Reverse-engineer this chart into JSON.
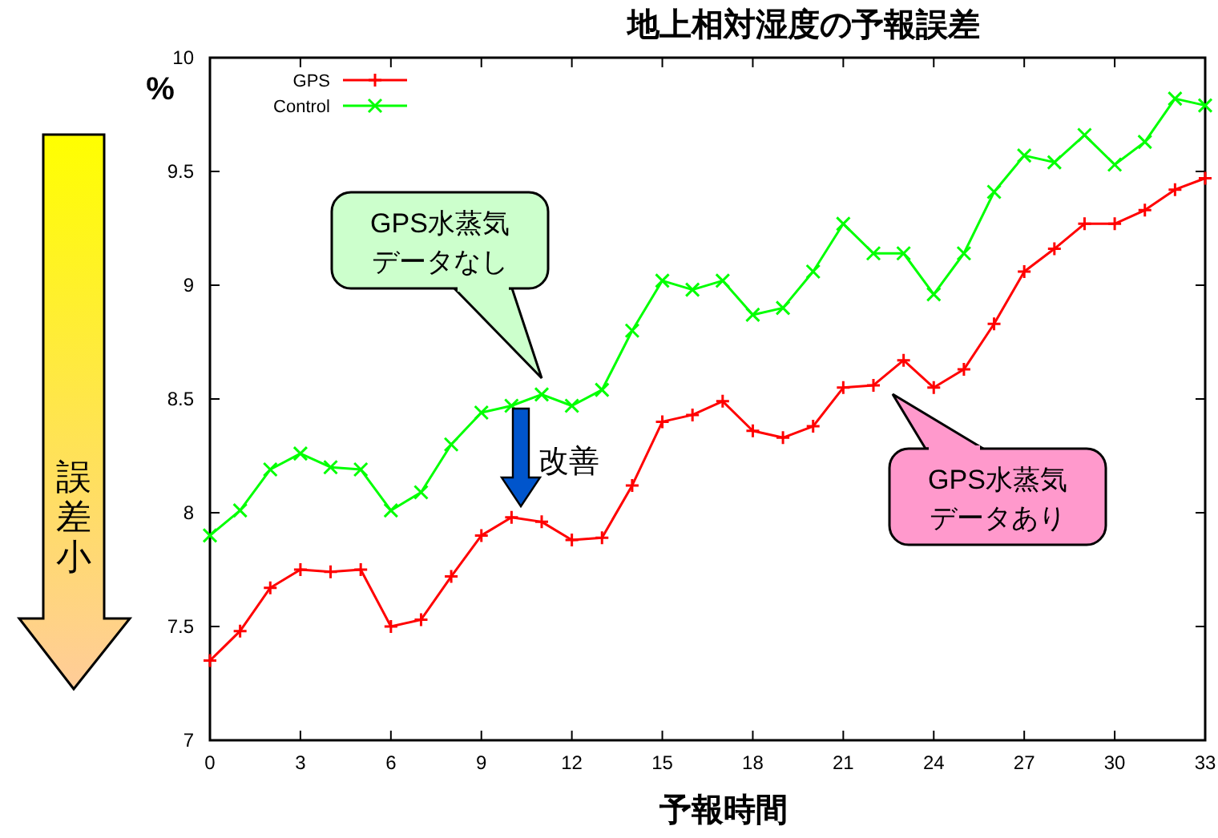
{
  "chart_data": {
    "type": "line",
    "title": "地上相対湿度の予報誤差",
    "xlabel": "予報時間",
    "ylabel": "%",
    "x": [
      0,
      1,
      2,
      3,
      4,
      5,
      6,
      7,
      8,
      9,
      10,
      11,
      12,
      13,
      14,
      15,
      16,
      17,
      18,
      19,
      20,
      21,
      22,
      23,
      24,
      25,
      26,
      27,
      28,
      29,
      30,
      31,
      32,
      33
    ],
    "series": [
      {
        "name": "GPS",
        "color": "#ff0000",
        "marker": "cross",
        "values": [
          7.35,
          7.48,
          7.67,
          7.75,
          7.74,
          7.75,
          7.5,
          7.53,
          7.72,
          7.9,
          7.98,
          7.96,
          7.88,
          7.89,
          8.12,
          8.4,
          8.43,
          8.49,
          8.36,
          8.33,
          8.38,
          8.55,
          8.56,
          8.67,
          8.55,
          8.63,
          8.83,
          9.06,
          9.16,
          9.27,
          9.27,
          9.33,
          9.42,
          9.47
        ]
      },
      {
        "name": "Control",
        "color": "#00ff00",
        "marker": "cross",
        "values": [
          7.9,
          8.01,
          8.19,
          8.26,
          8.2,
          8.19,
          8.01,
          8.09,
          8.3,
          8.44,
          8.47,
          8.52,
          8.47,
          8.54,
          8.8,
          9.02,
          8.98,
          9.02,
          8.87,
          8.9,
          9.06,
          9.27,
          9.14,
          9.14,
          8.96,
          9.14,
          9.41,
          9.57,
          9.54,
          9.66,
          9.53,
          9.63,
          9.82,
          9.79
        ]
      }
    ],
    "xlim": [
      0,
      33
    ],
    "xticks": [
      0,
      3,
      6,
      9,
      12,
      15,
      18,
      21,
      24,
      27,
      30,
      33
    ],
    "ylim": [
      7,
      10
    ],
    "yticks": [
      7,
      7.5,
      8,
      8.5,
      9,
      9.5,
      10
    ],
    "legend": "top left",
    "grid": false,
    "line_style": "solid",
    "annotations": [
      "GPS水蒸気データなし",
      "GPS水蒸気データあり",
      "改善",
      "誤差小"
    ]
  }
}
